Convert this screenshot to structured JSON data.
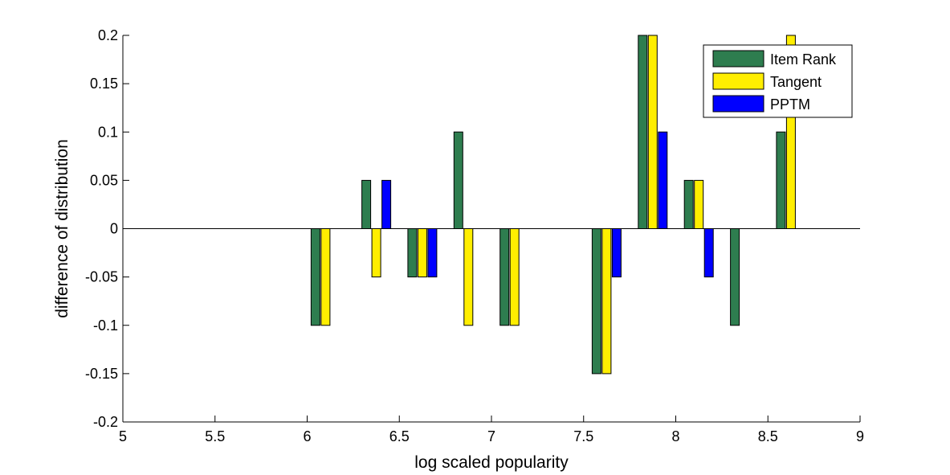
{
  "chart_data": {
    "type": "bar",
    "xlabel": "log scaled popularity",
    "ylabel": "difference of distribution",
    "xlim": [
      5,
      9
    ],
    "ylim": [
      -0.2,
      0.2
    ],
    "xticks": [
      "5",
      "5.5",
      "6",
      "6.5",
      "7",
      "7.5",
      "8",
      "8.5",
      "9"
    ],
    "yticks": [
      "-0.2",
      "-0.15",
      "-0.1",
      "-0.05",
      "0",
      "0.05",
      "0.1",
      "0.15",
      "0.2"
    ],
    "x": [
      6.1,
      6.375,
      6.625,
      6.875,
      7.125,
      7.625,
      7.875,
      8.125,
      8.375,
      8.625
    ],
    "series": [
      {
        "name": "Item Rank",
        "color": "#2e7d4f",
        "values": [
          -0.1,
          0.05,
          -0.05,
          0.1,
          -0.1,
          -0.15,
          0.2,
          0.05,
          -0.1,
          0.1
        ]
      },
      {
        "name": "Tangent",
        "color": "#ffee00",
        "values": [
          -0.1,
          -0.05,
          -0.05,
          -0.1,
          -0.1,
          -0.15,
          0.2,
          0.05,
          0,
          0.2
        ]
      },
      {
        "name": "PPTM",
        "color": "#0000ff",
        "values": [
          0,
          0.05,
          -0.05,
          0,
          0,
          -0.05,
          0.1,
          -0.05,
          0,
          0
        ]
      }
    ],
    "legend_position": "top-right",
    "grid": false
  }
}
